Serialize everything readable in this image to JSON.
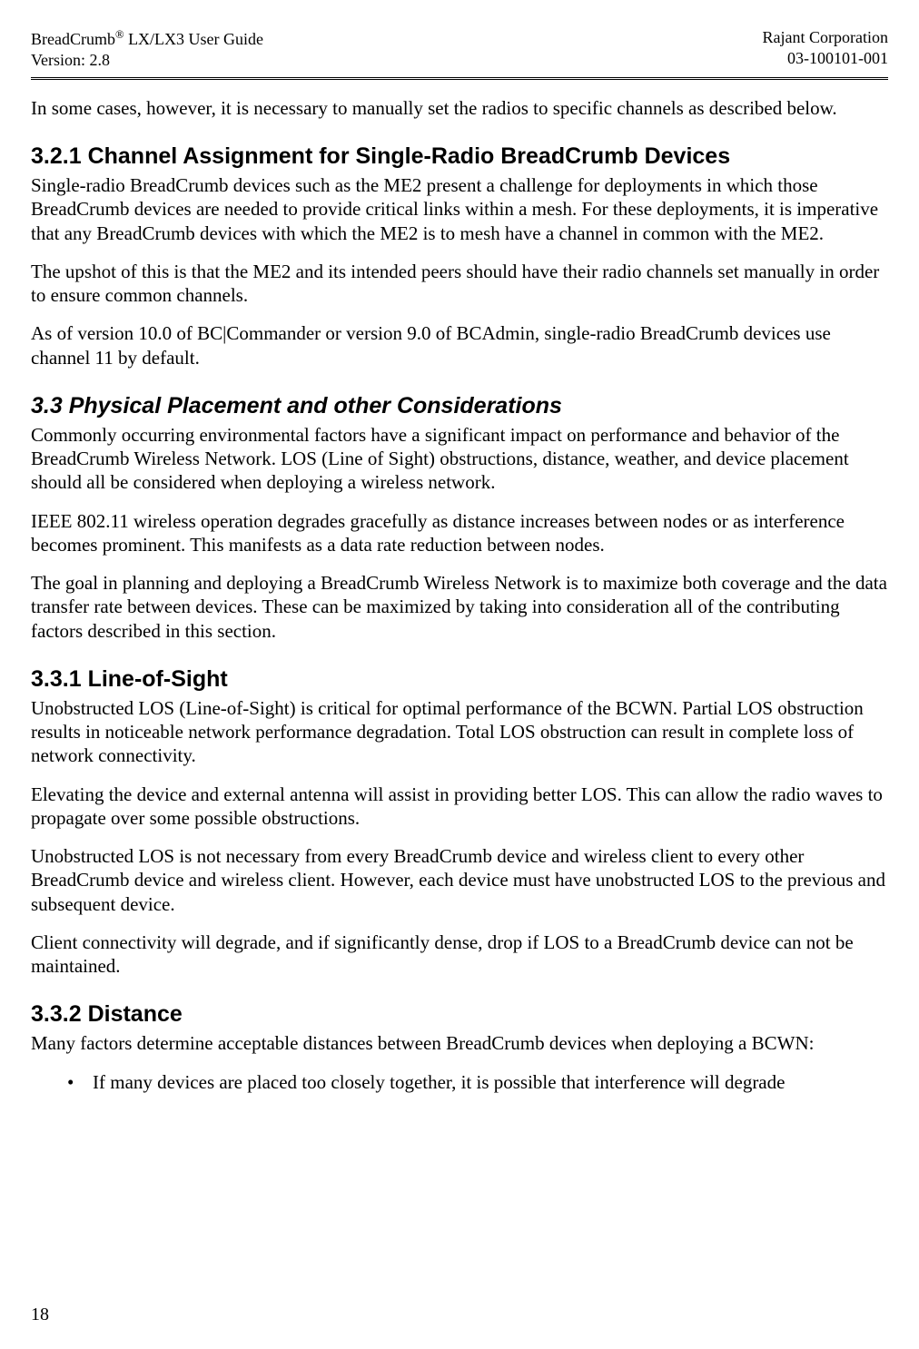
{
  "header": {
    "product": "BreadCrumb",
    "reg": "®",
    "product_suffix": " LX/LX3 User Guide",
    "version_label": "Version:  2.8",
    "company": "Rajant Corporation",
    "docnum": "03-100101-001"
  },
  "para_intro": "In some cases, however, it is necessary to manually set the radios to specific channels as described below.",
  "sec321": {
    "num": " 3.2.1  ",
    "title": "Channel Assignment for Single-Radio BreadCrumb Devices",
    "p1": "Single-radio BreadCrumb devices such as the ME2 present a challenge for deployments in which those BreadCrumb devices are needed to provide critical links within a mesh. For these deployments, it is imperative that any BreadCrumb devices with which the ME2 is to mesh have a channel in common with the ME2.",
    "p2": "The upshot of this is that the ME2 and its intended peers should have their radio channels set manually in order to ensure common channels.",
    "p3": "As of version 10.0 of BC|Commander or version 9.0 of BCAdmin, single-radio BreadCrumb devices use channel 11 by default."
  },
  "sec33": {
    "num": " 3.3  ",
    "title": "Physical Placement and other Considerations",
    "p1": "Commonly occurring environmental factors have a significant impact on performance and behavior of the BreadCrumb Wireless Network. LOS (Line of Sight) obstructions, distance, weather, and device placement should all be considered when deploying a wireless network.",
    "p2": "IEEE 802.11 wireless operation degrades gracefully as distance increases between nodes or as interference becomes prominent. This manifests as a data rate reduction between nodes.",
    "p3": "The goal in planning and deploying a BreadCrumb Wireless Network is to maximize both coverage and the data transfer rate between devices. These can be maximized by taking into consideration all of the contributing factors described in this section."
  },
  "sec331": {
    "num": " 3.3.1  ",
    "title": "Line-of-Sight",
    "p1": "Unobstructed LOS (Line-of-Sight) is critical for optimal performance of the BCWN.  Partial LOS obstruction results in noticeable network performance degradation.  Total LOS obstruction can result in complete loss of network connectivity.",
    "p2": "Elevating the device and external antenna will assist in providing better LOS.  This can allow the radio waves to propagate over some possible obstructions.",
    "p3": "Unobstructed LOS is not necessary from every BreadCrumb device and wireless client to every other BreadCrumb device and wireless client.  However, each device must have unobstructed LOS to the previous and subsequent device.",
    "p4": "Client connectivity will degrade, and if significantly dense, drop if LOS to a BreadCrumb device can not be maintained."
  },
  "sec332": {
    "num": " 3.3.2  ",
    "title": "Distance",
    "p1": "Many factors determine acceptable distances between BreadCrumb devices when deploying a BCWN:",
    "bullet_marker": "•",
    "bullet1": "If many devices are placed too closely together, it is possible that interference will degrade"
  },
  "page_number": "18"
}
